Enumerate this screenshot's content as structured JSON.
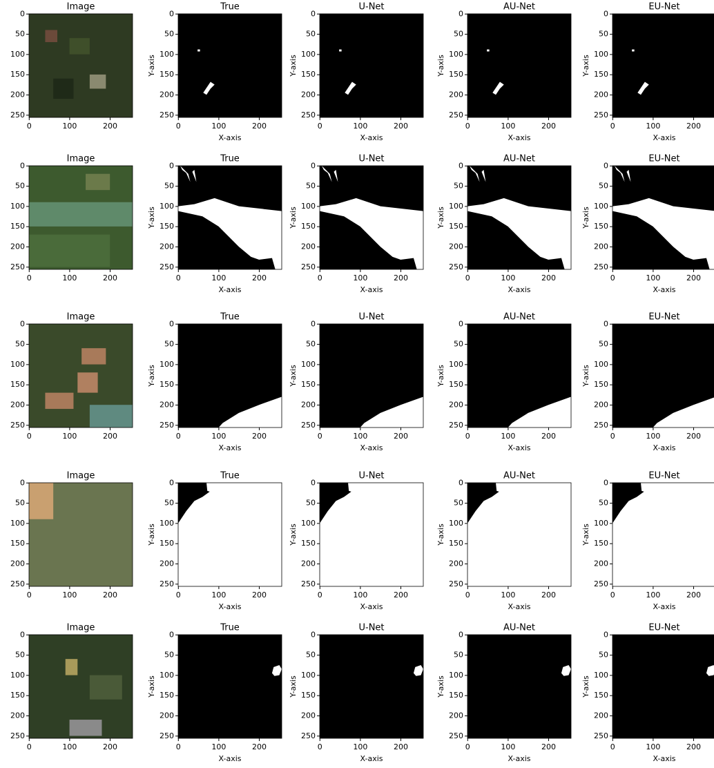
{
  "chart_data": [
    {
      "type": "image",
      "title": "Image",
      "xlim": [
        -0.5,
        255.5
      ],
      "ylim": [
        255.5,
        -0.5
      ],
      "xticks": [
        0,
        100,
        200
      ],
      "yticks": [
        0,
        50,
        100,
        150,
        200,
        250
      ]
    },
    {
      "type": "mask",
      "title": "True",
      "xlabel": "X-axis",
      "ylabel": "Y-axis",
      "xlim": [
        -0.5,
        255.5
      ],
      "ylim": [
        255.5,
        -0.5
      ],
      "xticks": [
        0,
        100,
        200
      ],
      "yticks": [
        0,
        50,
        100,
        150,
        200,
        250
      ]
    },
    {
      "type": "mask",
      "title": "U-Net",
      "xlabel": "X-axis",
      "ylabel": "Y-axis",
      "xlim": [
        -0.5,
        255.5
      ],
      "ylim": [
        255.5,
        -0.5
      ],
      "xticks": [
        0,
        100,
        200
      ],
      "yticks": [
        0,
        50,
        100,
        150,
        200,
        250
      ]
    },
    {
      "type": "mask",
      "title": "AU-Net",
      "xlabel": "X-axis",
      "ylabel": "Y-axis",
      "xlim": [
        -0.5,
        255.5
      ],
      "ylim": [
        255.5,
        -0.5
      ],
      "xticks": [
        0,
        100,
        200
      ],
      "yticks": [
        0,
        50,
        100,
        150,
        200,
        250
      ]
    },
    {
      "type": "mask",
      "title": "EU-Net",
      "xlabel": "X-axis",
      "ylabel": "Y-axis",
      "xlim": [
        -0.5,
        255.5
      ],
      "ylim": [
        255.5,
        -0.5
      ],
      "xticks": [
        0,
        100,
        200
      ],
      "yticks": [
        0,
        50,
        100,
        150,
        200,
        250
      ]
    },
    {
      "type": "image",
      "title": "Image",
      "xlim": [
        -0.5,
        255.5
      ],
      "ylim": [
        255.5,
        -0.5
      ],
      "xticks": [
        0,
        100,
        200
      ],
      "yticks": [
        0,
        50,
        100,
        150,
        200,
        250
      ]
    },
    {
      "type": "mask",
      "title": "True",
      "xlabel": "X-axis",
      "ylabel": "Y-axis",
      "xlim": [
        -0.5,
        255.5
      ],
      "ylim": [
        255.5,
        -0.5
      ],
      "xticks": [
        0,
        100,
        200
      ],
      "yticks": [
        0,
        50,
        100,
        150,
        200,
        250
      ]
    },
    {
      "type": "mask",
      "title": "U-Net",
      "xlabel": "X-axis",
      "ylabel": "Y-axis",
      "xlim": [
        -0.5,
        255.5
      ],
      "ylim": [
        255.5,
        -0.5
      ],
      "xticks": [
        0,
        100,
        200
      ],
      "yticks": [
        0,
        50,
        100,
        150,
        200,
        250
      ]
    },
    {
      "type": "mask",
      "title": "AU-Net",
      "xlabel": "X-axis",
      "ylabel": "Y-axis",
      "xlim": [
        -0.5,
        255.5
      ],
      "ylim": [
        255.5,
        -0.5
      ],
      "xticks": [
        0,
        100,
        200
      ],
      "yticks": [
        0,
        50,
        100,
        150,
        200,
        250
      ]
    },
    {
      "type": "mask",
      "title": "EU-Net",
      "xlabel": "X-axis",
      "ylabel": "Y-axis",
      "xlim": [
        -0.5,
        255.5
      ],
      "ylim": [
        255.5,
        -0.5
      ],
      "xticks": [
        0,
        100,
        200
      ],
      "yticks": [
        0,
        50,
        100,
        150,
        200,
        250
      ]
    },
    {
      "type": "image",
      "title": "Image",
      "xlim": [
        -0.5,
        255.5
      ],
      "ylim": [
        255.5,
        -0.5
      ],
      "xticks": [
        0,
        100,
        200
      ],
      "yticks": [
        0,
        50,
        100,
        150,
        200,
        250
      ]
    },
    {
      "type": "mask",
      "title": "True",
      "xlabel": "X-axis",
      "ylabel": "Y-axis",
      "xlim": [
        -0.5,
        255.5
      ],
      "ylim": [
        255.5,
        -0.5
      ],
      "xticks": [
        0,
        100,
        200
      ],
      "yticks": [
        0,
        50,
        100,
        150,
        200,
        250
      ]
    },
    {
      "type": "mask",
      "title": "U-Net",
      "xlabel": "X-axis",
      "ylabel": "Y-axis",
      "xlim": [
        -0.5,
        255.5
      ],
      "ylim": [
        255.5,
        -0.5
      ],
      "xticks": [
        0,
        100,
        200
      ],
      "yticks": [
        0,
        50,
        100,
        150,
        200,
        250
      ]
    },
    {
      "type": "mask",
      "title": "AU-Net",
      "xlabel": "X-axis",
      "ylabel": "Y-axis",
      "xlim": [
        -0.5,
        255.5
      ],
      "ylim": [
        255.5,
        -0.5
      ],
      "xticks": [
        0,
        100,
        200
      ],
      "yticks": [
        0,
        50,
        100,
        150,
        200,
        250
      ]
    },
    {
      "type": "mask",
      "title": "EU-Net",
      "xlabel": "X-axis",
      "ylabel": "Y-axis",
      "xlim": [
        -0.5,
        255.5
      ],
      "ylim": [
        255.5,
        -0.5
      ],
      "xticks": [
        0,
        100,
        200
      ],
      "yticks": [
        0,
        50,
        100,
        150,
        200,
        250
      ]
    },
    {
      "type": "image",
      "title": "Image",
      "xlim": [
        -0.5,
        255.5
      ],
      "ylim": [
        255.5,
        -0.5
      ],
      "xticks": [
        0,
        100,
        200
      ],
      "yticks": [
        0,
        50,
        100,
        150,
        200,
        250
      ]
    },
    {
      "type": "mask",
      "title": "True",
      "xlabel": "X-axis",
      "ylabel": "Y-axis",
      "xlim": [
        -0.5,
        255.5
      ],
      "ylim": [
        255.5,
        -0.5
      ],
      "xticks": [
        0,
        100,
        200
      ],
      "yticks": [
        0,
        50,
        100,
        150,
        200,
        250
      ]
    },
    {
      "type": "mask",
      "title": "U-Net",
      "xlabel": "X-axis",
      "ylabel": "Y-axis",
      "xlim": [
        -0.5,
        255.5
      ],
      "ylim": [
        255.5,
        -0.5
      ],
      "xticks": [
        0,
        100,
        200
      ],
      "yticks": [
        0,
        50,
        100,
        150,
        200,
        250
      ]
    },
    {
      "type": "mask",
      "title": "AU-Net",
      "xlabel": "X-axis",
      "ylabel": "Y-axis",
      "xlim": [
        -0.5,
        255.5
      ],
      "ylim": [
        255.5,
        -0.5
      ],
      "xticks": [
        0,
        100,
        200
      ],
      "yticks": [
        0,
        50,
        100,
        150,
        200,
        250
      ]
    },
    {
      "type": "mask",
      "title": "EU-Net",
      "xlabel": "X-axis",
      "ylabel": "Y-axis",
      "xlim": [
        -0.5,
        255.5
      ],
      "ylim": [
        255.5,
        -0.5
      ],
      "xticks": [
        0,
        100,
        200
      ],
      "yticks": [
        0,
        50,
        100,
        150,
        200,
        250
      ]
    },
    {
      "type": "image",
      "title": "Image",
      "xlim": [
        -0.5,
        255.5
      ],
      "ylim": [
        255.5,
        -0.5
      ],
      "xticks": [
        0,
        100,
        200
      ],
      "yticks": [
        0,
        50,
        100,
        150,
        200,
        250
      ]
    },
    {
      "type": "mask",
      "title": "True",
      "xlabel": "X-axis",
      "ylabel": "Y-axis",
      "xlim": [
        -0.5,
        255.5
      ],
      "ylim": [
        255.5,
        -0.5
      ],
      "xticks": [
        0,
        100,
        200
      ],
      "yticks": [
        0,
        50,
        100,
        150,
        200,
        250
      ]
    },
    {
      "type": "mask",
      "title": "U-Net",
      "xlabel": "X-axis",
      "ylabel": "Y-axis",
      "xlim": [
        -0.5,
        255.5
      ],
      "ylim": [
        255.5,
        -0.5
      ],
      "xticks": [
        0,
        100,
        200
      ],
      "yticks": [
        0,
        50,
        100,
        150,
        200,
        250
      ]
    },
    {
      "type": "mask",
      "title": "AU-Net",
      "xlabel": "X-axis",
      "ylabel": "Y-axis",
      "xlim": [
        -0.5,
        255.5
      ],
      "ylim": [
        255.5,
        -0.5
      ],
      "xticks": [
        0,
        100,
        200
      ],
      "yticks": [
        0,
        50,
        100,
        150,
        200,
        250
      ]
    },
    {
      "type": "mask",
      "title": "EU-Net",
      "xlabel": "X-axis",
      "ylabel": "Y-axis",
      "xlim": [
        -0.5,
        255.5
      ],
      "ylim": [
        255.5,
        -0.5
      ],
      "xticks": [
        0,
        100,
        200
      ],
      "yticks": [
        0,
        50,
        100,
        150,
        200,
        250
      ]
    }
  ]
}
